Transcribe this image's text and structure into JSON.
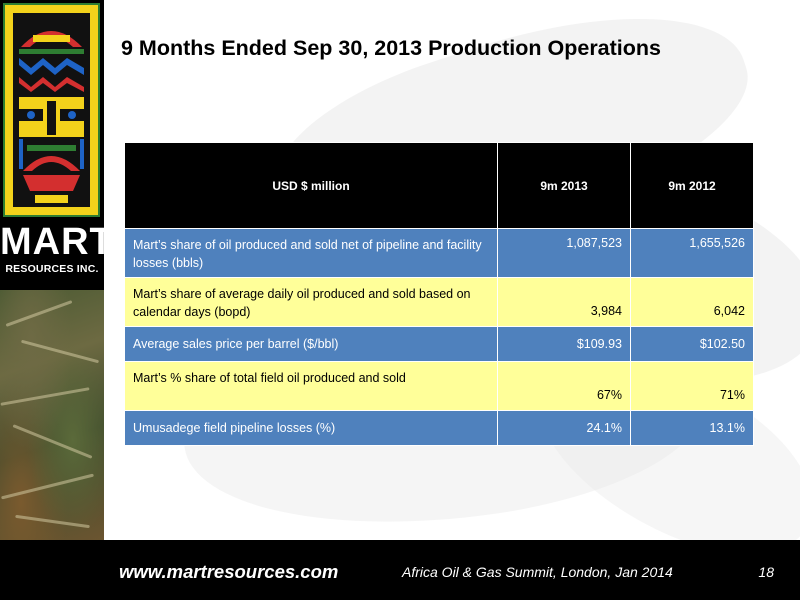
{
  "slide": {
    "title": "9 Months Ended Sep 30, 2013 Production Operations"
  },
  "branding": {
    "logo_name": "MART",
    "logo_subtitle": "RESOURCES INC."
  },
  "table": {
    "headers": [
      "USD $ million",
      "9m 2013",
      "9m 2012"
    ],
    "rows": [
      {
        "label": "Mart’s share of oil produced and sold net of pipeline and facility losses (bbls)",
        "v2013": "1,087,523",
        "v2012": "1,655,526",
        "color": "#4f81bd"
      },
      {
        "label": "Mart’s share of average daily oil produced and sold based on calendar days (bopd)",
        "v2013": "3,984",
        "v2012": "6,042",
        "color": "#ffff99"
      },
      {
        "label": "Average sales price per barrel ($/bbl)",
        "v2013": "$109.93",
        "v2012": "$102.50",
        "color": "#4f81bd"
      },
      {
        "label": "Mart’s % share of total field oil produced and sold",
        "v2013": "67%",
        "v2012": "71%",
        "color": "#ffff99"
      },
      {
        "label": "Umusadege field pipeline losses (%)",
        "v2013": "24.1%",
        "v2012": "13.1%",
        "color": "#4f81bd"
      }
    ]
  },
  "footer": {
    "url": "www.martresources.com",
    "event": "Africa Oil & Gas Summit, London, Jan 2014",
    "page_number": "18"
  },
  "colors": {
    "header_bg": "#000000",
    "row_blue": "#4f81bd",
    "row_yellow": "#ffff99",
    "logo_yellow": "#f3d21b"
  }
}
